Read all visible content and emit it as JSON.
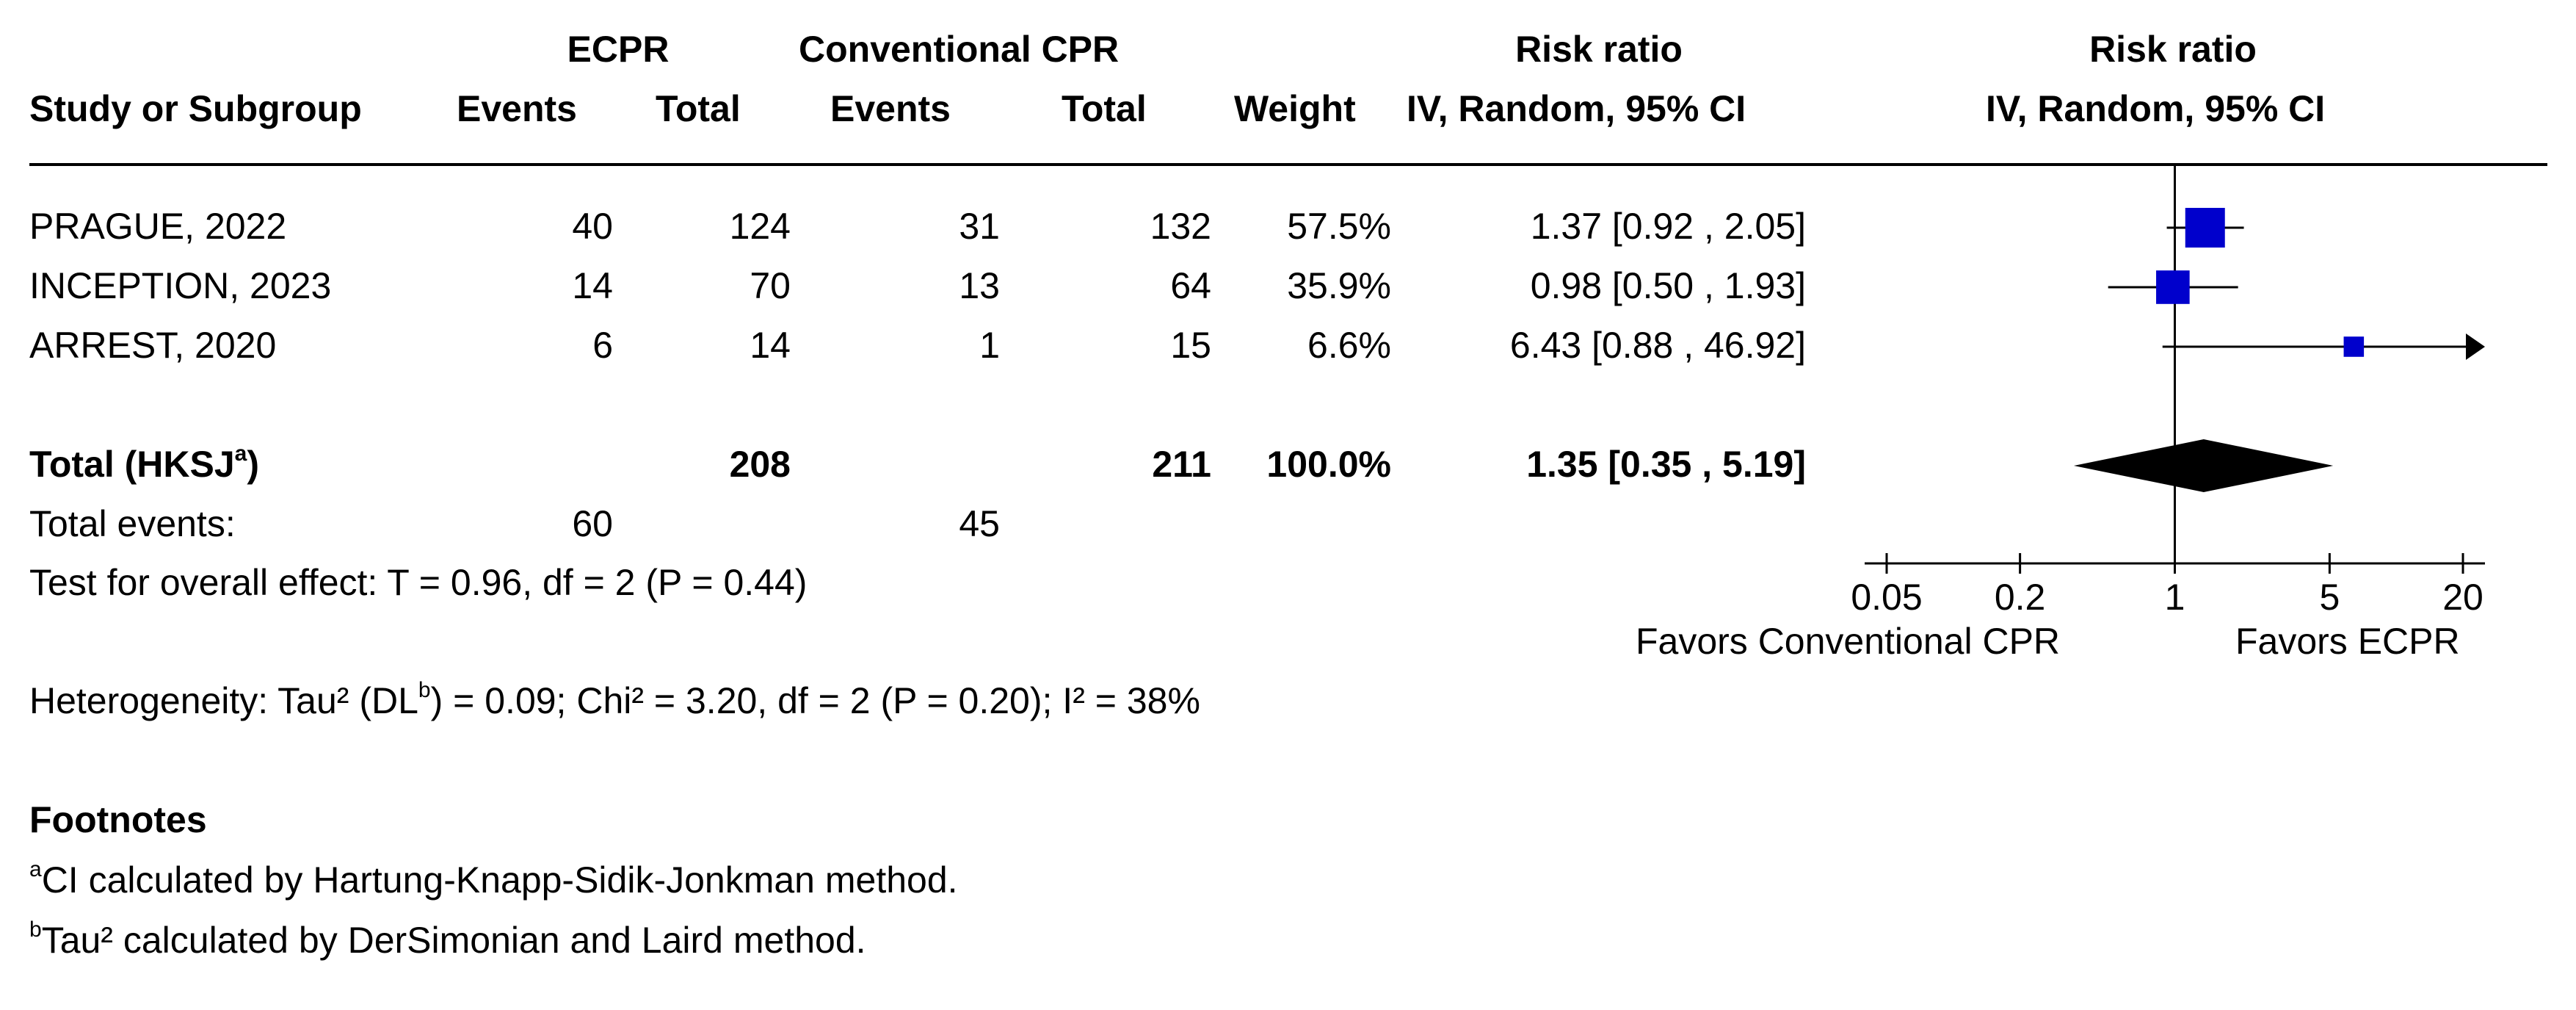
{
  "header": {
    "group1": "ECPR",
    "group2": "Conventional CPR",
    "rr_text_title": "Risk ratio",
    "rr_plot_title": "Risk ratio",
    "study_col": "Study or Subgroup",
    "events1": "Events",
    "total1": "Total",
    "events2": "Events",
    "total2": "Total",
    "weight": "Weight",
    "method_text": "IV, Random, 95% CI",
    "method_plot": "IV, Random, 95% CI"
  },
  "studies": [
    {
      "name": "PRAGUE, 2022",
      "e1": "40",
      "t1": "124",
      "e2": "31",
      "t2": "132",
      "weight": "57.5%",
      "ci_text": "1.37 [0.92 , 2.05]"
    },
    {
      "name": "INCEPTION, 2023",
      "e1": "14",
      "t1": "70",
      "e2": "13",
      "t2": "64",
      "weight": "35.9%",
      "ci_text": "0.98 [0.50 , 1.93]"
    },
    {
      "name": "ARREST, 2020",
      "e1": "6",
      "t1": "14",
      "e2": "1",
      "t2": "15",
      "weight": "6.6%",
      "ci_text": "6.43 [0.88 , 46.92]"
    }
  ],
  "total": {
    "label": "Total (HKSJ",
    "label_sup": "a",
    "label_close": ")",
    "t1": "208",
    "t2": "211",
    "weight": "100.0%",
    "ci_text": "1.35 [0.35 , 5.19]"
  },
  "total_events": {
    "label": "Total events:",
    "e1": "60",
    "e2": "45"
  },
  "overall_effect": "Test for overall effect: T = 0.96, df = 2 (P = 0.44)",
  "heterogeneity": {
    "pre": "Heterogeneity: Tau² (DL",
    "sup": "b",
    "post": ") = 0.09; Chi² = 3.20, df = 2 (P = 0.20); I² = 38%"
  },
  "footnotes": {
    "title": "Footnotes",
    "a_mark": "a",
    "a_text": "CI calculated by Hartung-Knapp-Sidik-Jonkman method.",
    "b_mark": "b",
    "b_text": "Tau² calculated by DerSimonian and Laird method."
  },
  "axis": {
    "favors_left": "Favors Conventional CPR",
    "favors_right": "Favors ECPR"
  },
  "chart_data": {
    "type": "forest",
    "scale": "log",
    "xlim": [
      0.05,
      20
    ],
    "xticks": [
      {
        "value": 0.05,
        "label": "0.05"
      },
      {
        "value": 0.2,
        "label": "0.2"
      },
      {
        "value": 1,
        "label": "1"
      },
      {
        "value": 5,
        "label": "5"
      },
      {
        "value": 20,
        "label": "20"
      }
    ],
    "studies": [
      {
        "name": "PRAGUE, 2022",
        "rr": 1.37,
        "lower": 0.92,
        "upper": 2.05,
        "weight": 57.5
      },
      {
        "name": "INCEPTION, 2023",
        "rr": 0.98,
        "lower": 0.5,
        "upper": 1.93,
        "weight": 35.9
      },
      {
        "name": "ARREST, 2020",
        "rr": 6.43,
        "lower": 0.88,
        "upper": 46.92,
        "weight": 6.6
      }
    ],
    "pooled": {
      "rr": 1.35,
      "lower": 0.35,
      "upper": 5.19
    },
    "colors": {
      "square": "#0000cc",
      "diamond": "#000000",
      "line": "#000000"
    }
  }
}
